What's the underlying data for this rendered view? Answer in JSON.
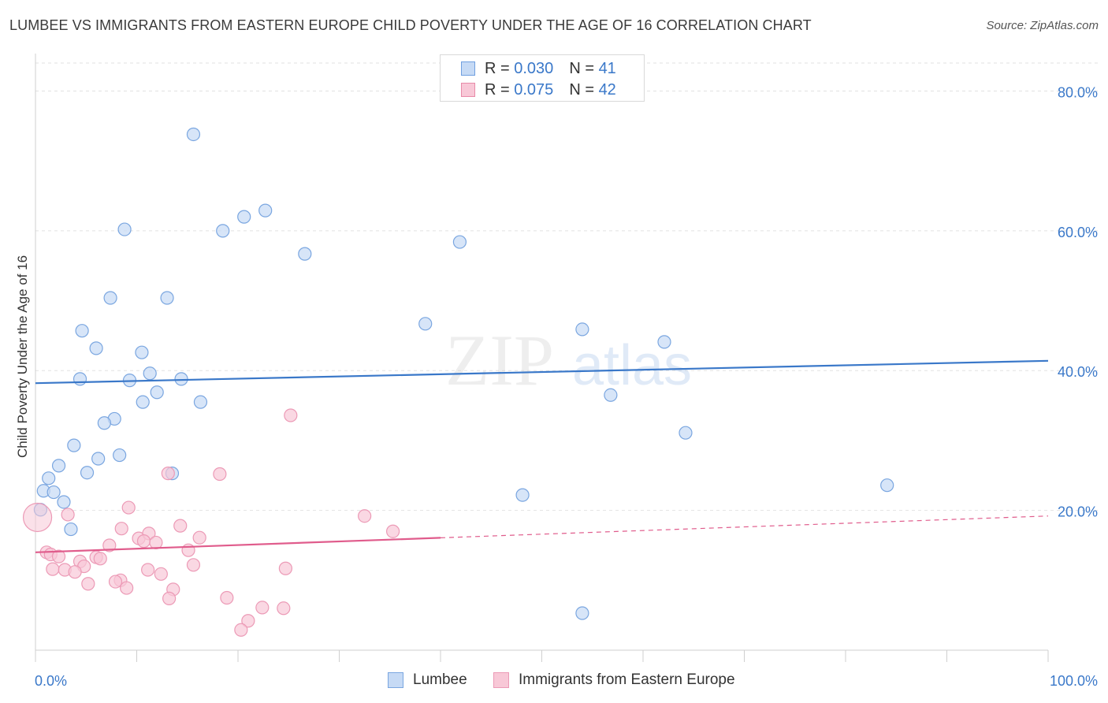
{
  "title": "LUMBEE VS IMMIGRANTS FROM EASTERN EUROPE CHILD POVERTY UNDER THE AGE OF 16 CORRELATION CHART",
  "source": "Source: ZipAtlas.com",
  "watermark": {
    "zip": "ZIP",
    "atlas": "atlas"
  },
  "legend_top": [
    {
      "r_label": "R =",
      "r_value": "0.030",
      "n_label": "N =",
      "n_value": "41",
      "color": "#6f9fe0",
      "fill": "#c6daf5"
    },
    {
      "r_label": "R =",
      "r_value": "0.075",
      "n_label": "N =",
      "n_value": "42",
      "color": "#e88aa8",
      "fill": "#f8c8d7"
    }
  ],
  "chart_data": {
    "type": "scatter",
    "title": "LUMBEE VS IMMIGRANTS FROM EASTERN EUROPE CHILD POVERTY UNDER THE AGE OF 16 CORRELATION CHART",
    "xlabel": "",
    "ylabel": "Child Poverty Under the Age of 16",
    "xlim": [
      0,
      100
    ],
    "ylim": [
      0,
      84
    ],
    "x_tick_labels": [
      "0.0%",
      "100.0%"
    ],
    "y_ticks": [
      20,
      40,
      60,
      80
    ],
    "y_tick_labels": [
      "20.0%",
      "40.0%",
      "60.0%",
      "80.0%"
    ],
    "grid": true,
    "series": [
      {
        "name": "Lumbee",
        "color": "#3a78c9",
        "fill": "#c6daf5",
        "stroke": "#7aa6e0",
        "points": [
          [
            15.6,
            73.8
          ],
          [
            22.7,
            62.9
          ],
          [
            20.6,
            62.0
          ],
          [
            8.8,
            60.2
          ],
          [
            18.5,
            60.0
          ],
          [
            26.6,
            56.7
          ],
          [
            41.9,
            58.4
          ],
          [
            7.4,
            50.4
          ],
          [
            13.0,
            50.4
          ],
          [
            38.5,
            46.7
          ],
          [
            4.6,
            45.7
          ],
          [
            54.0,
            45.9
          ],
          [
            6.0,
            43.2
          ],
          [
            62.1,
            44.1
          ],
          [
            10.5,
            42.6
          ],
          [
            4.4,
            38.8
          ],
          [
            9.3,
            38.6
          ],
          [
            11.3,
            39.6
          ],
          [
            14.4,
            38.8
          ],
          [
            12.0,
            36.9
          ],
          [
            10.6,
            35.5
          ],
          [
            16.3,
            35.5
          ],
          [
            56.8,
            36.5
          ],
          [
            7.8,
            33.1
          ],
          [
            6.8,
            32.5
          ],
          [
            64.2,
            31.1
          ],
          [
            3.8,
            29.3
          ],
          [
            6.2,
            27.4
          ],
          [
            8.3,
            27.9
          ],
          [
            2.3,
            26.4
          ],
          [
            5.1,
            25.4
          ],
          [
            13.5,
            25.3
          ],
          [
            1.3,
            24.6
          ],
          [
            0.8,
            22.8
          ],
          [
            1.8,
            22.6
          ],
          [
            48.1,
            22.2
          ],
          [
            84.1,
            23.6
          ],
          [
            2.8,
            21.2
          ],
          [
            0.5,
            20.1
          ],
          [
            3.5,
            17.3
          ],
          [
            54.0,
            5.3
          ]
        ]
      },
      {
        "name": "Immigrants from Eastern Europe",
        "color": "#e05c8c",
        "fill": "#f8c8d7",
        "stroke": "#ec9ab6",
        "points": [
          [
            0.2,
            19.0
          ],
          [
            3.2,
            19.4
          ],
          [
            9.2,
            20.4
          ],
          [
            25.2,
            33.6
          ],
          [
            13.1,
            25.3
          ],
          [
            18.2,
            25.2
          ],
          [
            32.5,
            19.2
          ],
          [
            35.3,
            17.0
          ],
          [
            14.3,
            17.8
          ],
          [
            8.5,
            17.4
          ],
          [
            10.2,
            16.0
          ],
          [
            11.2,
            16.7
          ],
          [
            16.2,
            16.1
          ],
          [
            10.7,
            15.6
          ],
          [
            11.9,
            15.4
          ],
          [
            7.3,
            15.0
          ],
          [
            1.1,
            14.0
          ],
          [
            15.1,
            14.3
          ],
          [
            1.5,
            13.7
          ],
          [
            2.3,
            13.4
          ],
          [
            6.0,
            13.3
          ],
          [
            6.4,
            13.1
          ],
          [
            4.4,
            12.7
          ],
          [
            4.8,
            12.0
          ],
          [
            15.6,
            12.2
          ],
          [
            24.7,
            11.7
          ],
          [
            1.7,
            11.6
          ],
          [
            2.9,
            11.5
          ],
          [
            11.1,
            11.5
          ],
          [
            3.9,
            11.2
          ],
          [
            12.4,
            10.9
          ],
          [
            8.4,
            10.0
          ],
          [
            7.9,
            9.8
          ],
          [
            5.2,
            9.5
          ],
          [
            9.0,
            8.9
          ],
          [
            13.6,
            8.7
          ],
          [
            13.2,
            7.4
          ],
          [
            18.9,
            7.5
          ],
          [
            22.4,
            6.1
          ],
          [
            24.5,
            6.0
          ],
          [
            21.0,
            4.2
          ],
          [
            20.3,
            2.9
          ]
        ]
      }
    ],
    "trend_lines": [
      {
        "series": "Lumbee",
        "x": [
          0,
          100
        ],
        "y": [
          38.2,
          41.4
        ],
        "dashed_from": null
      },
      {
        "series": "Immigrants from Eastern Europe",
        "x": [
          0,
          100
        ],
        "y": [
          14.0,
          19.2
        ],
        "dashed_from": 40
      }
    ]
  },
  "bottom_legend": [
    {
      "label": "Lumbee",
      "color": "#7aa6e0",
      "fill": "#c6daf5"
    },
    {
      "label": "Immigrants from Eastern Europe",
      "color": "#ec9ab6",
      "fill": "#f8c8d7"
    }
  ]
}
